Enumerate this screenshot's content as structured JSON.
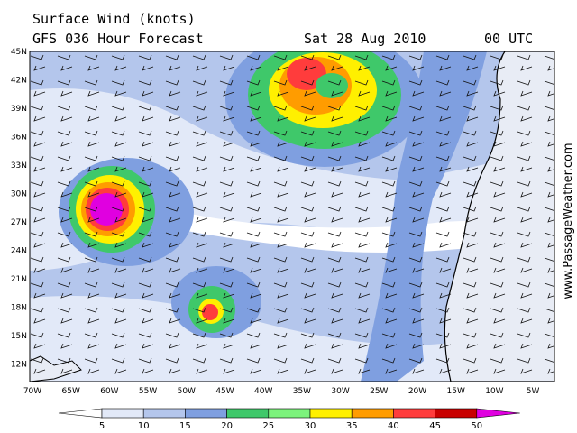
{
  "header": {
    "title": "Surface Wind (knots)",
    "subtitle": "GFS 036 Hour Forecast",
    "date": "Sat 28 Aug 2010",
    "time": "00 UTC"
  },
  "lat_labels": [
    "45N",
    "42N",
    "39N",
    "36N",
    "33N",
    "30N",
    "27N",
    "24N",
    "21N",
    "18N",
    "15N",
    "12N"
  ],
  "lon_labels": [
    "70W",
    "65W",
    "60W",
    "55W",
    "50W",
    "45W",
    "40W",
    "35W",
    "30W",
    "25W",
    "20W",
    "15W",
    "10W",
    "5W"
  ],
  "colorbar": {
    "ticks": [
      5,
      10,
      15,
      20,
      25,
      30,
      35,
      40,
      45,
      50
    ],
    "colors": [
      "#ffffff",
      "#e2e9f8",
      "#b4c6ec",
      "#7f9fe0",
      "#3fc86a",
      "#7cf37c",
      "#fff000",
      "#ff9c00",
      "#ff3c3c",
      "#c80000",
      "#e000e0"
    ]
  },
  "watermark": "www.PassageWeather.com"
}
